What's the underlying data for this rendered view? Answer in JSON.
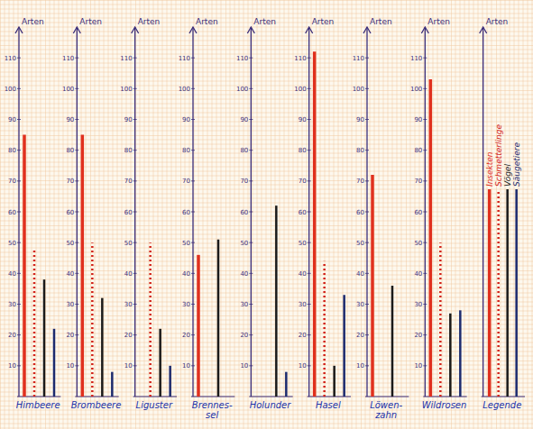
{
  "chart_data": {
    "type": "bar",
    "y_label": "Arten",
    "categories": [
      "Himbeere",
      "Brombeere",
      "Liguster",
      "Brennes-sel",
      "Holunder",
      "Hasel",
      "Löwen-zahn",
      "Wildrosen"
    ],
    "series": [
      {
        "name": "Insekten",
        "color": "#e0301e",
        "line_style": "solid",
        "values": [
          85,
          85,
          null,
          46,
          null,
          112,
          72,
          103
        ]
      },
      {
        "name": "Schmetterlinge",
        "color": "#d2231a",
        "line_style": "dotted",
        "values": [
          48,
          50,
          50,
          null,
          null,
          44,
          null,
          50
        ]
      },
      {
        "name": "Vögel",
        "color": "#1a1a1a",
        "line_style": "solid",
        "values": [
          38,
          32,
          22,
          51,
          62,
          10,
          36,
          27
        ]
      },
      {
        "name": "Säugetiere",
        "color": "#1c2a6e",
        "line_style": "solid",
        "values": [
          22,
          8,
          10,
          null,
          8,
          33,
          null,
          28
        ]
      }
    ],
    "ylim": [
      0,
      120
    ],
    "yticks": [
      10,
      20,
      30,
      40,
      50,
      60,
      70,
      80,
      90,
      100,
      110
    ],
    "legend": "right",
    "legend_title": "Legende"
  }
}
